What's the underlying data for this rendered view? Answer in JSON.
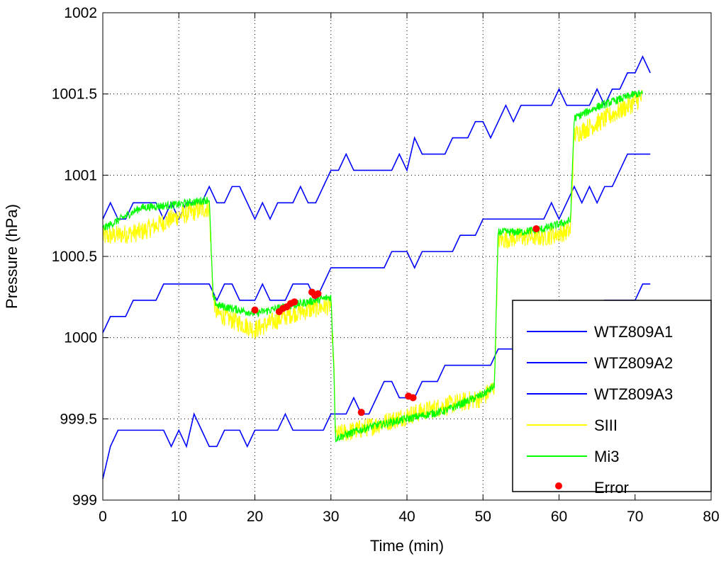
{
  "chart_data": {
    "type": "line",
    "title": "",
    "xlabel": "Time (min)",
    "ylabel": "Pressure (hPa)",
    "xlim": [
      0,
      80
    ],
    "ylim": [
      999,
      1002
    ],
    "xticks": [
      "0",
      "10",
      "20",
      "30",
      "40",
      "50",
      "60",
      "70",
      "80"
    ],
    "yticks": [
      "999",
      "999.5",
      "1000",
      "1000.5",
      "1001",
      "1001.5",
      "1002"
    ],
    "grid": "dotted",
    "legend_position": "bottom-right",
    "series": [
      {
        "name": "WTZ809A1",
        "color": "#0000ff",
        "style": "line",
        "x": [
          0,
          1,
          2,
          3,
          4,
          5,
          6,
          7,
          8,
          9,
          10,
          11,
          12,
          13,
          14,
          15,
          16,
          17,
          18,
          19,
          20,
          21,
          22,
          23,
          24,
          25,
          26,
          27,
          28,
          29,
          30,
          31,
          32,
          33,
          34,
          35,
          36,
          37,
          38,
          39,
          40,
          41,
          42,
          43,
          44,
          45,
          46,
          47,
          48,
          49,
          50,
          51,
          52,
          53,
          54,
          55,
          56,
          57,
          58,
          59,
          60,
          61,
          62,
          63,
          64,
          65,
          66,
          67,
          68,
          69,
          70,
          71,
          72
        ],
        "y": [
          1000.73,
          1000.83,
          1000.73,
          1000.73,
          1000.83,
          1000.83,
          1000.83,
          1000.83,
          1000.73,
          1000.83,
          1000.73,
          1000.83,
          1000.83,
          1000.83,
          1000.93,
          1000.83,
          1000.83,
          1000.93,
          1000.93,
          1000.83,
          1000.73,
          1000.83,
          1000.73,
          1000.83,
          1000.83,
          1000.83,
          1000.93,
          1000.83,
          1000.83,
          1000.93,
          1001.03,
          1001.03,
          1001.13,
          1001.03,
          1001.03,
          1001.03,
          1001.03,
          1001.03,
          1001.03,
          1001.13,
          1001.03,
          1001.23,
          1001.13,
          1001.13,
          1001.13,
          1001.13,
          1001.23,
          1001.23,
          1001.23,
          1001.33,
          1001.33,
          1001.23,
          1001.33,
          1001.43,
          1001.33,
          1001.43,
          1001.43,
          1001.43,
          1001.43,
          1001.43,
          1001.53,
          1001.43,
          1001.43,
          1001.43,
          1001.43,
          1001.53,
          1001.43,
          1001.53,
          1001.53,
          1001.63,
          1001.63,
          1001.73,
          1001.63
        ]
      },
      {
        "name": "WTZ809A2",
        "color": "#0000ff",
        "style": "line",
        "x": [
          0,
          1,
          2,
          3,
          4,
          5,
          6,
          7,
          8,
          9,
          10,
          11,
          12,
          13,
          14,
          15,
          16,
          17,
          18,
          19,
          20,
          21,
          22,
          23,
          24,
          25,
          26,
          27,
          28,
          29,
          30,
          31,
          32,
          33,
          34,
          35,
          36,
          37,
          38,
          39,
          40,
          41,
          42,
          43,
          44,
          45,
          46,
          47,
          48,
          49,
          50,
          51,
          52,
          53,
          54,
          55,
          56,
          57,
          58,
          59,
          60,
          61,
          62,
          63,
          64,
          65,
          66,
          67,
          68,
          69,
          70,
          71,
          72
        ],
        "y": [
          1000.03,
          1000.13,
          1000.13,
          1000.13,
          1000.23,
          1000.23,
          1000.23,
          1000.23,
          1000.33,
          1000.33,
          1000.33,
          1000.33,
          1000.33,
          1000.33,
          1000.33,
          1000.23,
          1000.33,
          1000.33,
          1000.23,
          1000.23,
          1000.23,
          1000.33,
          1000.23,
          1000.23,
          1000.23,
          1000.33,
          1000.33,
          1000.33,
          1000.23,
          1000.33,
          1000.43,
          1000.43,
          1000.43,
          1000.43,
          1000.43,
          1000.43,
          1000.43,
          1000.43,
          1000.53,
          1000.53,
          1000.53,
          1000.43,
          1000.53,
          1000.53,
          1000.53,
          1000.53,
          1000.53,
          1000.63,
          1000.63,
          1000.63,
          1000.73,
          1000.73,
          1000.73,
          1000.73,
          1000.73,
          1000.73,
          1000.73,
          1000.73,
          1000.73,
          1000.83,
          1000.73,
          1000.83,
          1000.93,
          1000.83,
          1000.93,
          1000.83,
          1000.93,
          1000.93,
          1001.03,
          1001.13,
          1001.13,
          1001.13,
          1001.13
        ]
      },
      {
        "name": "WTZ809A3",
        "color": "#0000ff",
        "style": "line",
        "x": [
          0,
          1,
          2,
          3,
          4,
          5,
          6,
          7,
          8,
          9,
          10,
          11,
          12,
          13,
          14,
          15,
          16,
          17,
          18,
          19,
          20,
          21,
          22,
          23,
          24,
          25,
          26,
          27,
          28,
          29,
          30,
          31,
          32,
          33,
          34,
          35,
          36,
          37,
          38,
          39,
          40,
          41,
          42,
          43,
          44,
          45,
          46,
          47,
          48,
          49,
          50,
          51,
          52,
          53,
          54,
          55,
          56,
          57,
          58,
          59,
          60,
          61,
          62,
          63,
          64,
          65,
          66,
          67,
          68,
          69,
          70,
          71,
          72
        ],
        "y": [
          999.13,
          999.33,
          999.43,
          999.43,
          999.43,
          999.43,
          999.43,
          999.43,
          999.43,
          999.33,
          999.43,
          999.33,
          999.53,
          999.43,
          999.33,
          999.33,
          999.43,
          999.43,
          999.43,
          999.33,
          999.43,
          999.43,
          999.43,
          999.43,
          999.53,
          999.43,
          999.43,
          999.43,
          999.43,
          999.43,
          999.53,
          999.53,
          999.53,
          999.63,
          999.53,
          999.53,
          999.63,
          999.73,
          999.73,
          999.63,
          999.63,
          999.63,
          999.73,
          999.73,
          999.73,
          999.83,
          999.83,
          999.83,
          999.83,
          999.83,
          999.83,
          999.83,
          999.93,
          999.93,
          999.93,
          999.93,
          1000.03,
          1000.03,
          1000.03,
          1000.03,
          1000.03,
          1000.03,
          1000.13,
          1000.13,
          1000.13,
          1000.13,
          1000.23,
          1000.23,
          1000.23,
          1000.23,
          1000.23,
          1000.33,
          1000.33
        ]
      },
      {
        "name": "SIII",
        "color": "#ffff00",
        "style": "noisy",
        "x": [
          0,
          5,
          10,
          14,
          14.5,
          15,
          20,
          25,
          30,
          30.4,
          30.6,
          35,
          40,
          45,
          50,
          51.5,
          52,
          55,
          58,
          61.5,
          62,
          65,
          70,
          71
        ],
        "y": [
          1000.62,
          1000.65,
          1000.75,
          1000.8,
          1000.25,
          1000.15,
          1000.05,
          1000.15,
          1000.2,
          999.8,
          999.4,
          999.45,
          999.52,
          999.58,
          999.63,
          999.7,
          1000.6,
          1000.62,
          1000.62,
          1000.66,
          1001.25,
          1001.32,
          1001.45,
          1001.48
        ],
        "noise": 0.06
      },
      {
        "name": "Mi3",
        "color": "#00ff00",
        "style": "noisy",
        "x": [
          0,
          5,
          10,
          14,
          14.5,
          15,
          20,
          25,
          30,
          30.4,
          30.6,
          35,
          40,
          45,
          50,
          51.5,
          52,
          55,
          58,
          61.5,
          62,
          65,
          70,
          71
        ],
        "y": [
          1000.67,
          1000.8,
          1000.82,
          1000.85,
          1000.25,
          1000.2,
          1000.15,
          1000.2,
          1000.25,
          999.8,
          999.38,
          999.45,
          999.5,
          999.55,
          999.65,
          999.7,
          1000.65,
          1000.65,
          1000.67,
          1000.72,
          1001.35,
          1001.42,
          1001.5,
          1001.5
        ],
        "noise": 0.025
      },
      {
        "name": "Error",
        "color": "#ff0000",
        "style": "points",
        "x": [
          20,
          23.2,
          23.7,
          24.2,
          24.7,
          25.2,
          27.5,
          27.9,
          28.3,
          34,
          40.2,
          40.8,
          57
        ],
        "y": [
          1000.17,
          1000.16,
          1000.18,
          1000.19,
          1000.21,
          1000.22,
          1000.28,
          1000.26,
          1000.27,
          999.54,
          999.64,
          999.63,
          1000.67
        ]
      }
    ]
  }
}
